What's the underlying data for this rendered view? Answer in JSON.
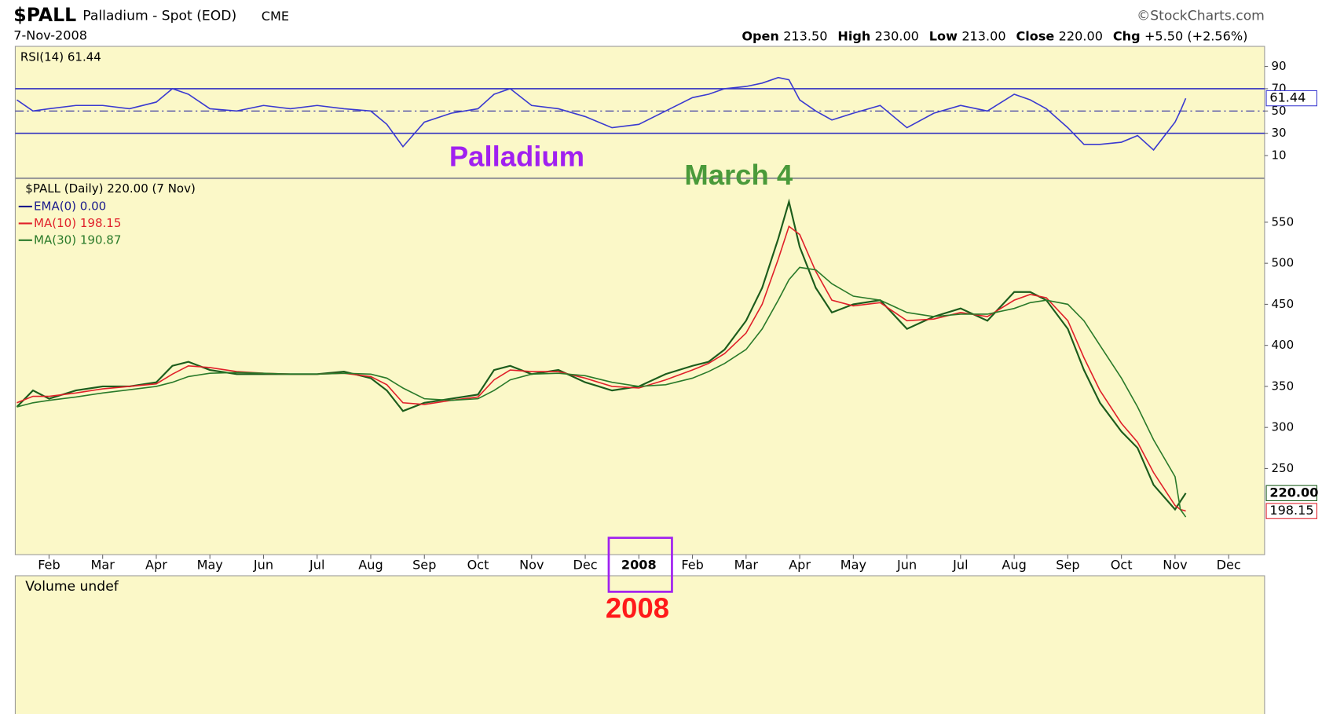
{
  "header": {
    "symbol": "$PALL",
    "name": "Palladium - Spot (EOD)",
    "exchange": "CME",
    "date": "7-Nov-2008",
    "copyright": "©StockCharts.com",
    "quote": [
      {
        "label": "Open",
        "value": "213.50"
      },
      {
        "label": "High",
        "value": "230.00"
      },
      {
        "label": "Low",
        "value": "213.00"
      },
      {
        "label": "Close",
        "value": "220.00"
      },
      {
        "label": "Chg",
        "value": "+5.50 (+2.56%)"
      }
    ]
  },
  "chart_data": [
    {
      "type": "line",
      "title": "RSI(14) 61.44",
      "x": [
        0.4,
        0.7,
        1.0,
        1.5,
        2.0,
        2.5,
        3.0,
        3.3,
        3.6,
        4.0,
        4.5,
        5.0,
        5.5,
        6.0,
        6.5,
        7.0,
        7.3,
        7.6,
        8.0,
        8.5,
        9.0,
        9.3,
        9.6,
        10.0,
        10.5,
        11.0,
        11.5,
        12.0,
        12.5,
        13.0,
        13.3,
        13.6,
        14.0,
        14.3,
        14.6,
        14.8,
        15.0,
        15.3,
        15.6,
        16.0,
        16.5,
        17.0,
        17.5,
        18.0,
        18.5,
        19.0,
        19.3,
        19.6,
        20.0,
        20.3,
        20.6,
        21.0,
        21.3,
        21.6,
        22.0,
        22.1,
        22.2
      ],
      "xlim": [
        0.37,
        23.67
      ],
      "series": [
        {
          "color": "#3a3ad0",
          "last_label": "61.44",
          "values": [
            60,
            50,
            52,
            55,
            55,
            52,
            58,
            70,
            65,
            52,
            50,
            55,
            52,
            55,
            52,
            50,
            38,
            18,
            40,
            48,
            52,
            65,
            70,
            55,
            52,
            45,
            35,
            38,
            50,
            62,
            65,
            70,
            72,
            75,
            80,
            78,
            60,
            50,
            42,
            48,
            55,
            35,
            48,
            55,
            50,
            65,
            60,
            52,
            35,
            20,
            20,
            22,
            28,
            15,
            40,
            50,
            61.44
          ]
        }
      ],
      "ylim": [
        -10,
        108
      ],
      "yticks": [
        10,
        30,
        50,
        70,
        90
      ],
      "levels": [
        30,
        50,
        70
      ]
    },
    {
      "type": "line",
      "title": "$PALL (Daily) 220.00 (7 Nov)",
      "x": [
        0.4,
        0.7,
        1.0,
        1.5,
        2.0,
        2.5,
        3.0,
        3.3,
        3.6,
        4.0,
        4.5,
        5.0,
        5.5,
        6.0,
        6.5,
        7.0,
        7.3,
        7.6,
        8.0,
        8.5,
        9.0,
        9.3,
        9.6,
        10.0,
        10.5,
        11.0,
        11.5,
        12.0,
        12.5,
        13.0,
        13.3,
        13.6,
        14.0,
        14.3,
        14.6,
        14.8,
        15.0,
        15.3,
        15.6,
        16.0,
        16.5,
        17.0,
        17.5,
        18.0,
        18.5,
        19.0,
        19.3,
        19.6,
        20.0,
        20.3,
        20.6,
        21.0,
        21.3,
        21.6,
        22.0,
        22.1,
        22.2
      ],
      "xlim": [
        0.37,
        23.67
      ],
      "xticks": [
        {
          "value": 1,
          "label": "Feb"
        },
        {
          "value": 2,
          "label": "Mar"
        },
        {
          "value": 3,
          "label": "Apr"
        },
        {
          "value": 4,
          "label": "May"
        },
        {
          "value": 5,
          "label": "Jun"
        },
        {
          "value": 6,
          "label": "Jul"
        },
        {
          "value": 7,
          "label": "Aug"
        },
        {
          "value": 8,
          "label": "Sep"
        },
        {
          "value": 9,
          "label": "Oct"
        },
        {
          "value": 10,
          "label": "Nov"
        },
        {
          "value": 11,
          "label": "Dec"
        },
        {
          "value": 12,
          "label": "2008"
        },
        {
          "value": 13,
          "label": "Feb"
        },
        {
          "value": 14,
          "label": "Mar"
        },
        {
          "value": 15,
          "label": "Apr"
        },
        {
          "value": 16,
          "label": "May"
        },
        {
          "value": 17,
          "label": "Jun"
        },
        {
          "value": 18,
          "label": "Jul"
        },
        {
          "value": 19,
          "label": "Aug"
        },
        {
          "value": 20,
          "label": "Sep"
        },
        {
          "value": 21,
          "label": "Oct"
        },
        {
          "value": 22,
          "label": "Nov"
        },
        {
          "value": 23,
          "label": "Dec"
        }
      ],
      "series": [
        {
          "color": "#1c5c1c",
          "last_label": "220.00",
          "values": [
            325,
            345,
            335,
            345,
            350,
            350,
            355,
            375,
            380,
            370,
            365,
            365,
            365,
            365,
            368,
            360,
            345,
            320,
            330,
            335,
            340,
            370,
            375,
            365,
            370,
            355,
            345,
            350,
            365,
            375,
            380,
            395,
            430,
            470,
            530,
            575,
            520,
            470,
            440,
            450,
            455,
            420,
            435,
            445,
            430,
            465,
            465,
            455,
            420,
            370,
            330,
            295,
            275,
            230,
            200,
            210,
            220
          ]
        },
        {
          "name": "EMA(0) 0.00",
          "color": "#1a1a8c"
        },
        {
          "name": "MA(10) 198.15",
          "color": "#e0202a",
          "last_label": "198.15",
          "values": [
            330,
            338,
            338,
            342,
            347,
            350,
            353,
            365,
            375,
            373,
            368,
            366,
            365,
            365,
            366,
            362,
            352,
            330,
            328,
            333,
            337,
            358,
            370,
            368,
            368,
            360,
            350,
            348,
            358,
            370,
            378,
            390,
            415,
            450,
            505,
            545,
            535,
            490,
            455,
            448,
            452,
            430,
            432,
            440,
            435,
            455,
            462,
            458,
            430,
            385,
            345,
            305,
            282,
            245,
            205,
            200,
            198.15
          ]
        },
        {
          "name": "MA(30) 190.87",
          "color": "#2a7a2a",
          "values": [
            325,
            330,
            333,
            337,
            342,
            346,
            350,
            355,
            362,
            366,
            367,
            366,
            365,
            365,
            366,
            365,
            360,
            348,
            335,
            333,
            335,
            345,
            358,
            365,
            366,
            363,
            355,
            350,
            352,
            360,
            368,
            378,
            395,
            420,
            455,
            480,
            495,
            492,
            475,
            460,
            455,
            440,
            435,
            438,
            438,
            445,
            452,
            455,
            450,
            430,
            400,
            360,
            325,
            285,
            240,
            200,
            190.87
          ]
        }
      ],
      "ylim": [
        145,
        603
      ],
      "yticks": [
        250,
        300,
        350,
        400,
        450,
        500,
        550
      ]
    }
  ],
  "volume": {
    "title": "Volume undef"
  },
  "annotations": [
    {
      "text": "Palladium",
      "color": "#a020f0"
    },
    {
      "text": "March 4",
      "color": "#4a9a3a"
    },
    {
      "text": "2008",
      "color": "#ff1a1a"
    }
  ]
}
